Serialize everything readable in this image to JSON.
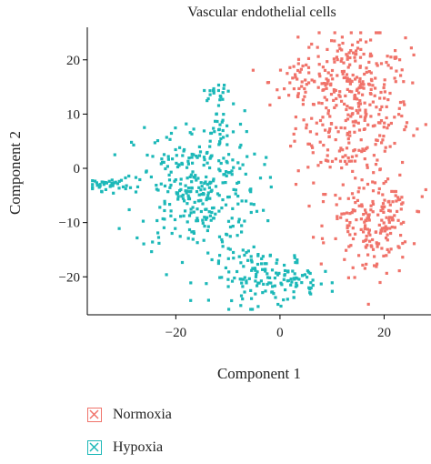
{
  "chart_data": {
    "type": "scatter",
    "title": "Vascular endothelial cells",
    "xlabel": "Component 1",
    "ylabel": "Component 2",
    "xlim": [
      -37,
      29
    ],
    "ylim": [
      -27,
      26
    ],
    "x_ticks": [
      -20,
      0,
      20
    ],
    "y_ticks": [
      -20,
      -10,
      0,
      10,
      20
    ],
    "x_tick_labels": [
      "−20",
      "0",
      "20"
    ],
    "y_tick_labels": [
      "−20",
      "−10",
      "0",
      "10",
      "20"
    ],
    "grid": false,
    "legend_position": "bottom-left",
    "series": [
      {
        "name": "Normoxia",
        "color": "#F0736A",
        "clusters": [
          {
            "cx": 14,
            "cy": 10,
            "sx": 5.5,
            "sy": 7,
            "n": 330
          },
          {
            "cx": 5,
            "cy": 16,
            "sx": 3.5,
            "sy": 2.5,
            "n": 45
          },
          {
            "cx": 17,
            "cy": -10,
            "sx": 4,
            "sy": 3,
            "n": 110
          },
          {
            "cx": 19,
            "cy": -15,
            "sx": 3.5,
            "sy": 2.5,
            "n": 40
          },
          {
            "cx": 21,
            "cy": -8,
            "sx": 2,
            "sy": 3.5,
            "n": 30
          },
          {
            "cx": 14,
            "cy": 20,
            "sx": 5,
            "sy": 2,
            "n": 50
          }
        ]
      },
      {
        "name": "Hypoxia",
        "color": "#1CB8B8",
        "clusters": [
          {
            "cx": -16,
            "cy": -4,
            "sx": 6,
            "sy": 6,
            "n": 310
          },
          {
            "cx": -33,
            "cy": -3,
            "sx": 2,
            "sy": 0.6,
            "n": 35
          },
          {
            "cx": -12,
            "cy": 14,
            "sx": 1.3,
            "sy": 0.8,
            "n": 18
          },
          {
            "cx": -12,
            "cy": 7,
            "sx": 2,
            "sy": 3,
            "n": 30
          },
          {
            "cx": -3,
            "cy": -20,
            "sx": 5,
            "sy": 2.5,
            "n": 130
          },
          {
            "cx": 4,
            "cy": -21,
            "sx": 3,
            "sy": 1.5,
            "n": 30
          }
        ]
      }
    ]
  },
  "legend": {
    "items": [
      {
        "label": "Normoxia",
        "color": "#F0736A"
      },
      {
        "label": "Hypoxia",
        "color": "#1CB8B8"
      }
    ]
  }
}
